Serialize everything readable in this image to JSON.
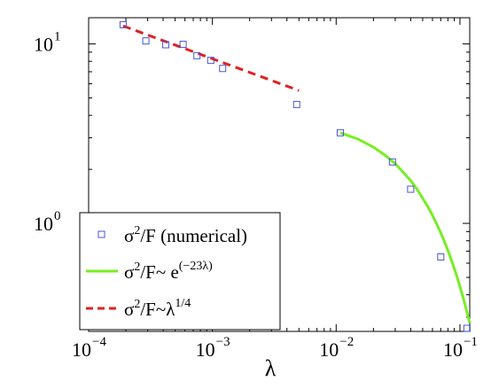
{
  "chart_data": {
    "type": "scatter",
    "xlabel": "λ",
    "ylabel": "",
    "title": "",
    "xscale": "log",
    "yscale": "log",
    "xlim": [
      0.0001,
      0.12
    ],
    "ylim": [
      0.25,
      14
    ],
    "x_ticks": [
      {
        "value": 0.0001,
        "base": "10",
        "exp": "−4"
      },
      {
        "value": 0.001,
        "base": "10",
        "exp": "−3"
      },
      {
        "value": 0.01,
        "base": "10",
        "exp": "−2"
      },
      {
        "value": 0.1,
        "base": "10",
        "exp": "−1"
      }
    ],
    "y_ticks": [
      {
        "value": 1,
        "base": "10",
        "exp": "0"
      },
      {
        "value": 10,
        "base": "10",
        "exp": "1"
      }
    ],
    "grid": false,
    "legend_position": "bottom-left",
    "series": [
      {
        "name": "σ²/F (numerical)",
        "legend_main": "σ",
        "legend_sup": "2",
        "legend_rest": "/F (numerical)",
        "kind": "markers",
        "marker": "square",
        "color": "#4a55d6",
        "points": [
          [
            0.00019,
            12.8
          ],
          [
            0.00029,
            10.4
          ],
          [
            0.00042,
            9.9
          ],
          [
            0.00058,
            9.95
          ],
          [
            0.00075,
            8.6
          ],
          [
            0.00097,
            8.1
          ],
          [
            0.00121,
            7.3
          ],
          [
            0.0048,
            4.6
          ],
          [
            0.0108,
            3.2
          ],
          [
            0.0285,
            2.2
          ],
          [
            0.04,
            1.55
          ],
          [
            0.07,
            0.65
          ],
          [
            0.114,
            0.26
          ]
        ]
      },
      {
        "name": "σ²/F~ e^(−23λ)",
        "legend_main": "σ",
        "legend_sup": "2",
        "legend_rest": "/F~ e",
        "legend_sup2": "(−23λ)",
        "kind": "line",
        "style": "solid",
        "color": "#77ee22",
        "points": [
          [
            0.0108,
            3.2
          ],
          [
            0.015,
            2.95
          ],
          [
            0.02,
            2.66
          ],
          [
            0.025,
            2.39
          ],
          [
            0.03,
            2.15
          ],
          [
            0.035,
            1.92
          ],
          [
            0.04,
            1.73
          ],
          [
            0.045,
            1.55
          ],
          [
            0.05,
            1.38
          ],
          [
            0.055,
            1.24
          ],
          [
            0.06,
            1.11
          ],
          [
            0.065,
            0.99
          ],
          [
            0.07,
            0.886
          ],
          [
            0.075,
            0.791
          ],
          [
            0.08,
            0.706
          ],
          [
            0.085,
            0.629
          ],
          [
            0.09,
            0.561
          ],
          [
            0.095,
            0.5
          ],
          [
            0.1,
            0.445
          ],
          [
            0.105,
            0.396
          ],
          [
            0.11,
            0.352
          ],
          [
            0.115,
            0.313
          ],
          [
            0.12,
            0.278
          ]
        ]
      },
      {
        "name": "σ²/F~λ^1/4",
        "legend_main": "σ",
        "legend_sup": "2",
        "legend_rest": "/F~λ",
        "legend_sup2": "1/4",
        "kind": "line",
        "style": "dashed",
        "color": "#e02020",
        "points": [
          [
            0.00019,
            12.6
          ],
          [
            0.005,
            5.5
          ]
        ]
      }
    ]
  }
}
